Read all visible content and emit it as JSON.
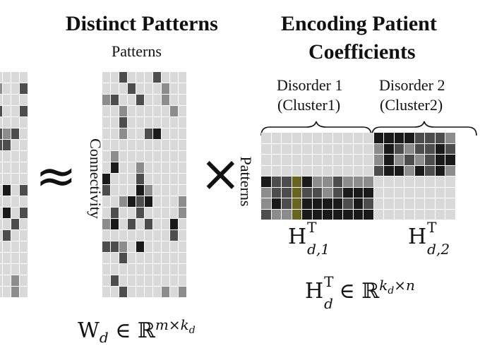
{
  "headings": {
    "distinct_patterns": "Distinct Patterns",
    "encoding_line1": "Encoding Patient",
    "encoding_line2": "Coefficients"
  },
  "axis_labels": {
    "patterns_top": "Patterns",
    "connectivity_side": "Connectivity",
    "patterns_side": "Patterns"
  },
  "clusters": [
    {
      "name": "Disorder 1",
      "sub": "(Cluster1)"
    },
    {
      "name": "Disorder 2",
      "sub": "(Cluster2)"
    }
  ],
  "operators": {
    "approx": "≈",
    "times": "×"
  },
  "equations": {
    "wd": {
      "base": "W",
      "sub": "d",
      "mid": " ∈ ℝ",
      "sup": "m×k",
      "supsub": "d"
    },
    "hd1": {
      "base": "H",
      "sup": "T",
      "sub": "d,1"
    },
    "hd2": {
      "base": "H",
      "sup": "T",
      "sub": "d,2"
    },
    "hd": {
      "base": "H",
      "sup": "T",
      "sub": "d",
      "mid": " ∈ ℝ",
      "sup2": "k",
      "sup2sub": "d",
      "sup2tail": "×n"
    }
  },
  "colors": {
    "cell_light": "#d9d9d9",
    "cell_mid": "#8c8c8c",
    "cell_dark": "#4d4d4d",
    "cell_black": "#1a1a1a",
    "accent_olive": "#6b6420"
  }
}
